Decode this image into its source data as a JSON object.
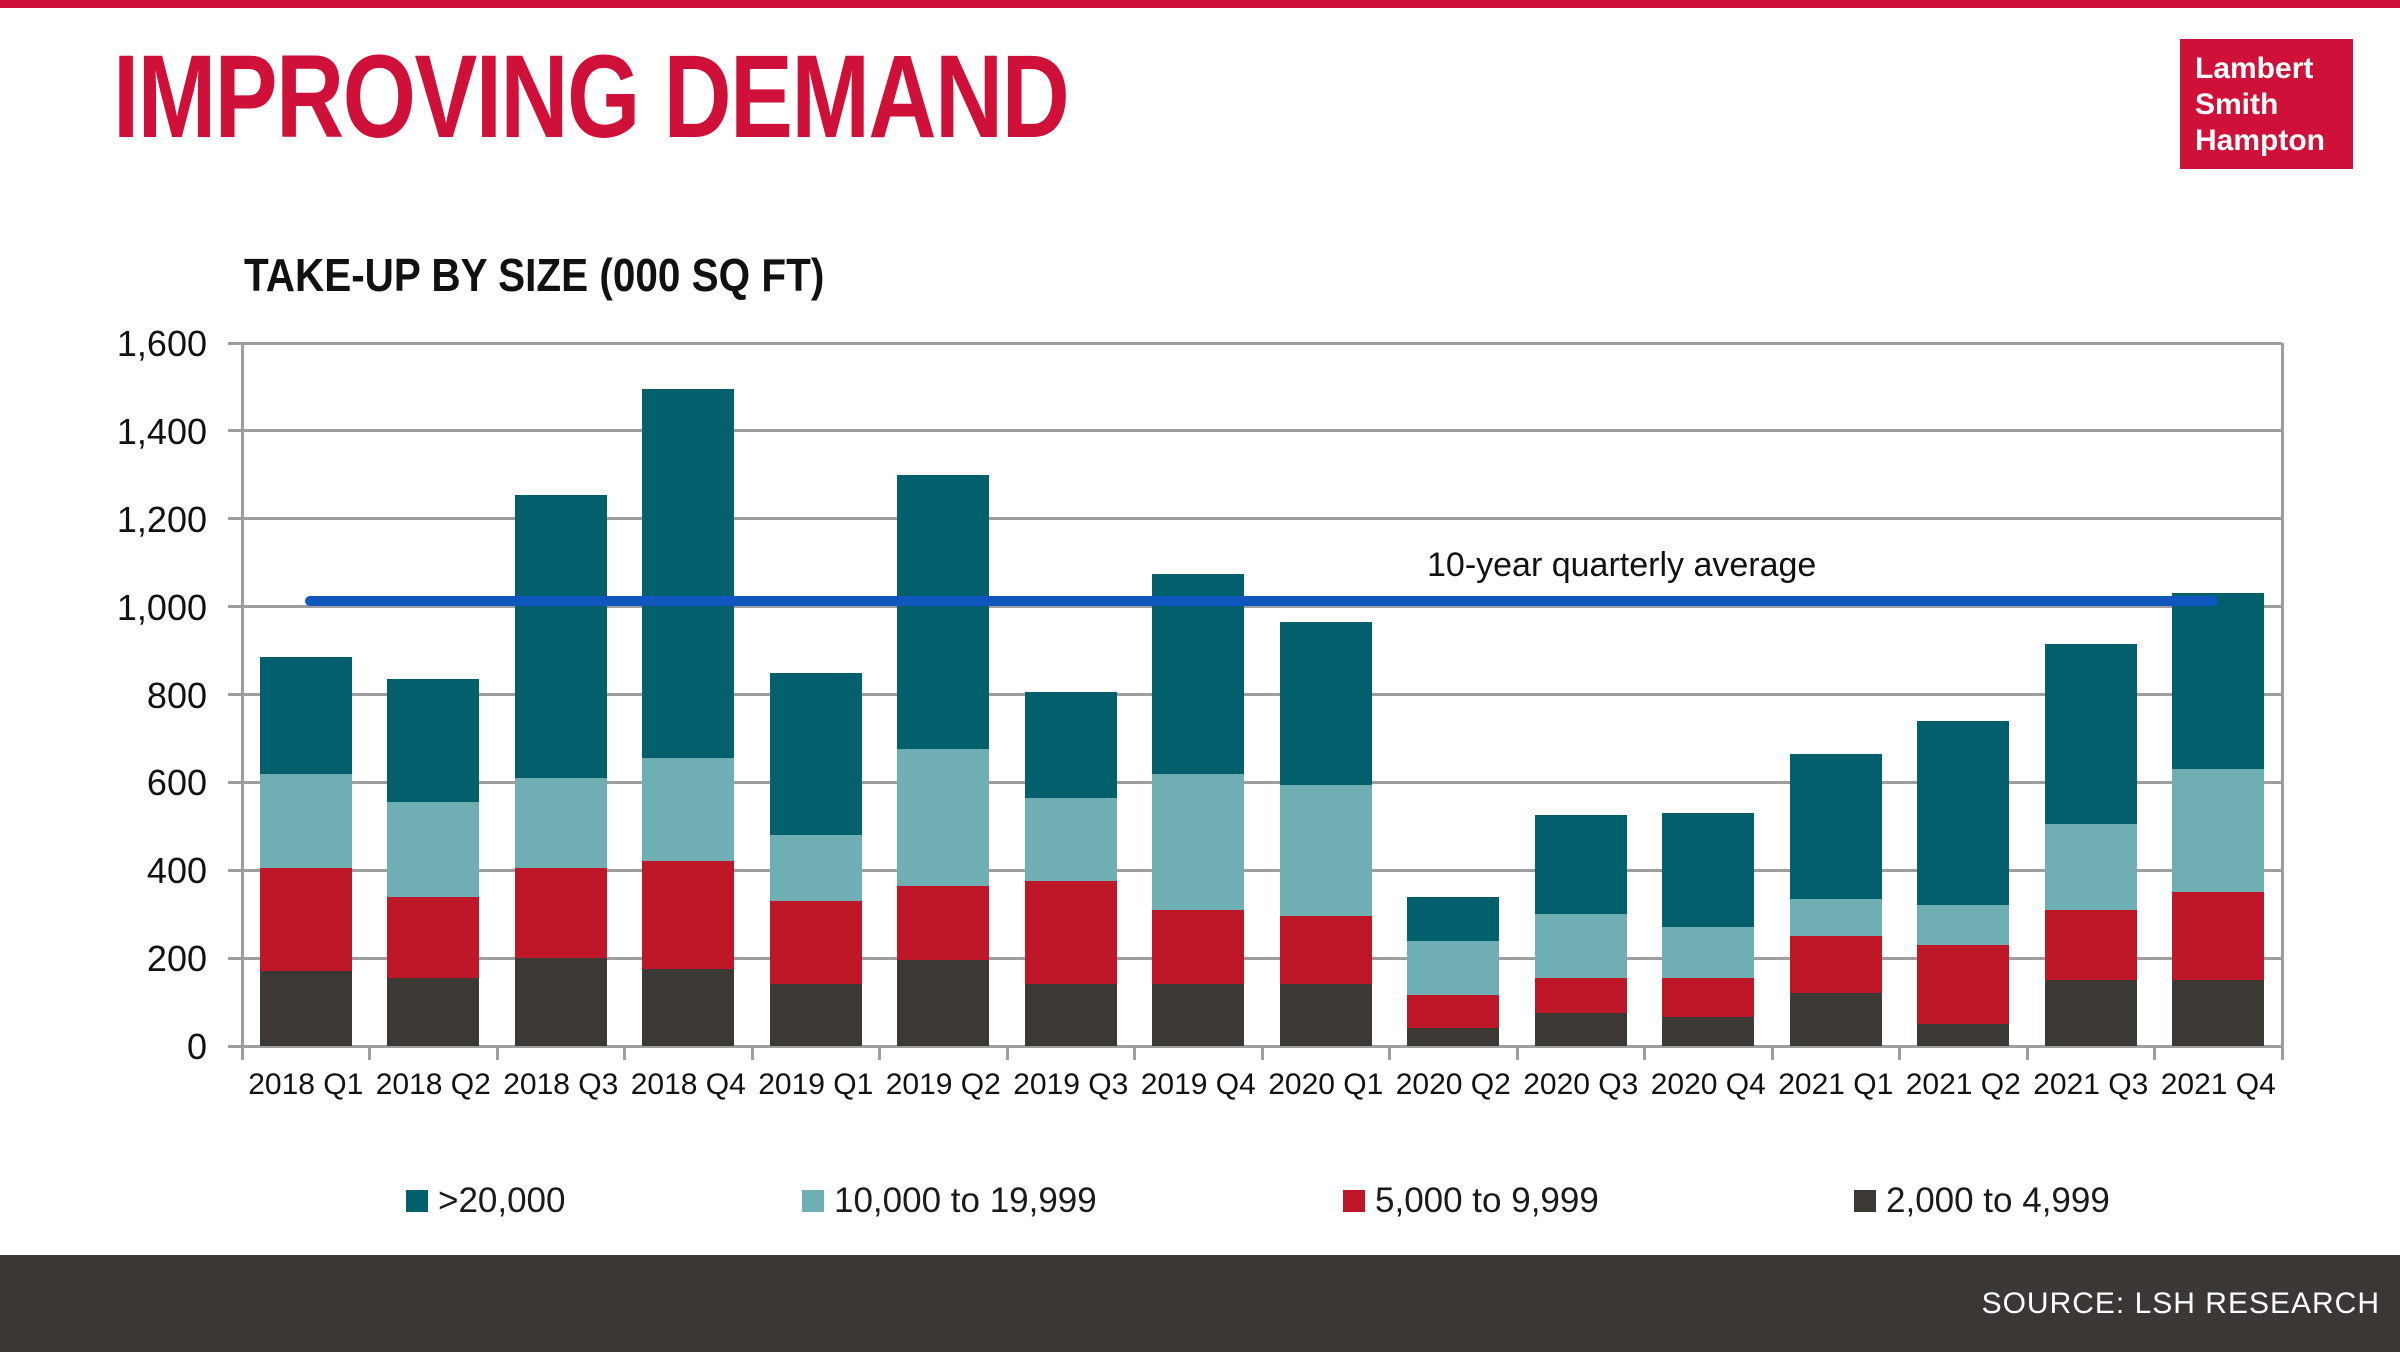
{
  "header": {
    "title": "IMPROVING DEMAND"
  },
  "logo": {
    "lines": [
      "Lambert",
      "Smith",
      "Hampton"
    ]
  },
  "colors": {
    "brand_red": "#CF1038",
    "footer_bg": "#3B3735",
    "gridline": "#9E9E9E",
    "average_line_blue": "#0F57BE"
  },
  "chart_title": "TAKE-UP BY SIZE (000 SQ FT)",
  "chart_data": {
    "type": "bar",
    "stacked": true,
    "title": "TAKE-UP BY SIZE (000 SQ FT)",
    "xlabel": "",
    "ylabel": "",
    "ylim": [
      0,
      1600
    ],
    "ytick_step": 200,
    "grid": true,
    "legend_position": "bottom",
    "categories": [
      "2018 Q1",
      "2018 Q2",
      "2018 Q3",
      "2018 Q4",
      "2019 Q1",
      "2019 Q2",
      "2019 Q3",
      "2019 Q4",
      "2020 Q1",
      "2020 Q2",
      "2020 Q3",
      "2020 Q4",
      "2021 Q1",
      "2021 Q2",
      "2021 Q3",
      "2021 Q4"
    ],
    "series": [
      {
        "name": "2,000 to 4,999",
        "color": "#3C3834",
        "values": [
          170,
          155,
          200,
          175,
          140,
          195,
          140,
          140,
          140,
          40,
          75,
          65,
          120,
          50,
          150,
          150
        ]
      },
      {
        "name": "5,000 to 9,999",
        "color": "#BE1728",
        "values": [
          235,
          185,
          205,
          245,
          190,
          170,
          235,
          170,
          155,
          75,
          80,
          90,
          130,
          180,
          160,
          200
        ]
      },
      {
        "name": "10,000 to 19,999",
        "color": "#6FAFB3",
        "values": [
          215,
          215,
          205,
          235,
          150,
          310,
          190,
          310,
          300,
          125,
          145,
          115,
          85,
          90,
          195,
          280
        ]
      },
      {
        "name": ">20,000",
        "color": "#02606C",
        "values": [
          265,
          280,
          645,
          840,
          370,
          625,
          240,
          455,
          370,
          100,
          225,
          260,
          330,
          420,
          410,
          400
        ]
      }
    ],
    "totals": [
      885,
      835,
      1255,
      1495,
      850,
      1300,
      805,
      1075,
      965,
      340,
      525,
      530,
      665,
      740,
      915,
      1030
    ],
    "average_line": {
      "label": "10-year quarterly average",
      "value": 1012,
      "color": "#0F57BE"
    },
    "legend": [
      {
        "label": ">20,000",
        "color": "#02606C"
      },
      {
        "label": "10,000 to 19,999",
        "color": "#6FAFB3"
      },
      {
        "label": "5,000 to 9,999",
        "color": "#BE1728"
      },
      {
        "label": "2,000 to 4,999",
        "color": "#3C3834"
      }
    ]
  },
  "footer": {
    "source": "SOURCE: LSH RESEARCH"
  }
}
